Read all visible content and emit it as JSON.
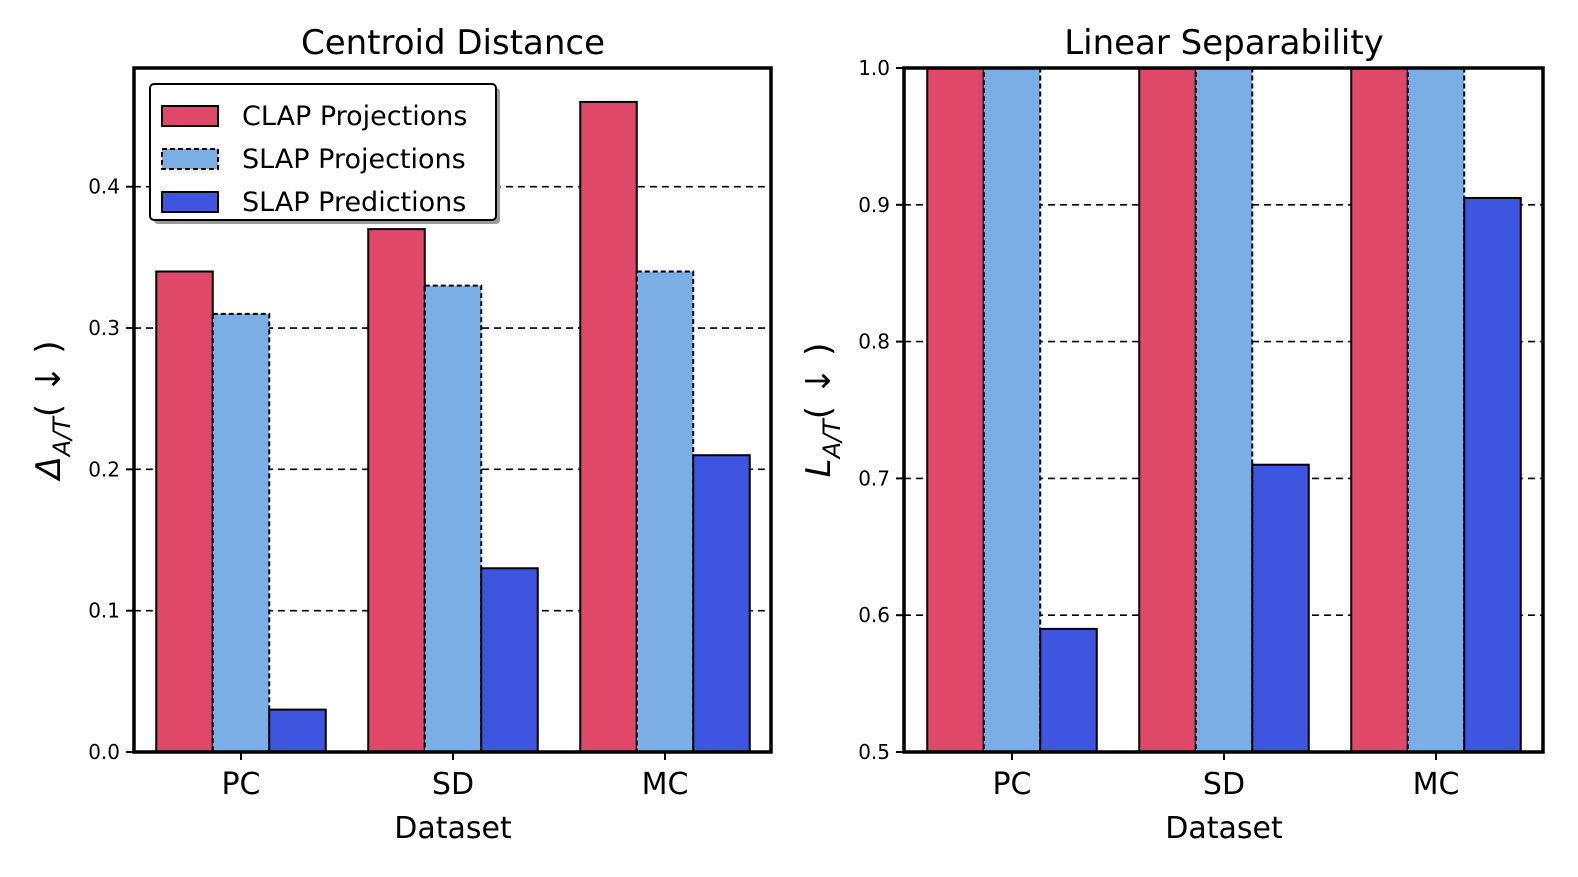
{
  "colors": {
    "clap_projections": "#E0486A",
    "slap_projections": "#7AAEE4",
    "slap_predictions": "#3D55DF"
  },
  "chart_data": [
    {
      "type": "bar",
      "title": "Centroid Distance",
      "xlabel": "Dataset",
      "ylabel": "Δ_{A/T}( ↓ )",
      "ylabel_main": "Δ",
      "ylabel_sub": "A/T",
      "ylabel_suffix": "( ↓ )",
      "categories": [
        "PC",
        "SD",
        "MC"
      ],
      "ylim": [
        0.0,
        0.484
      ],
      "yticks": [
        0.0,
        0.1,
        0.2,
        0.3,
        0.4
      ],
      "ytick_labels": [
        "0.0",
        "0.1",
        "0.2",
        "0.3",
        "0.4"
      ],
      "grid": true,
      "legend": "top-left",
      "series": [
        {
          "name": "CLAP Projections",
          "values": [
            0.34,
            0.37,
            0.46
          ],
          "color_key": "clap_projections",
          "dashed_edge": false
        },
        {
          "name": "SLAP Projections",
          "values": [
            0.31,
            0.33,
            0.34
          ],
          "color_key": "slap_projections",
          "dashed_edge": true
        },
        {
          "name": "SLAP Predictions",
          "values": [
            0.03,
            0.13,
            0.21
          ],
          "color_key": "slap_predictions",
          "dashed_edge": false
        }
      ]
    },
    {
      "type": "bar",
      "title": "Linear Separability",
      "xlabel": "Dataset",
      "ylabel": "L_{A/T}( ↓ )",
      "ylabel_main": "L",
      "ylabel_sub": "A/T",
      "ylabel_suffix": "( ↓ )",
      "categories": [
        "PC",
        "SD",
        "MC"
      ],
      "ylim": [
        0.5,
        1.0
      ],
      "yticks": [
        0.5,
        0.6,
        0.7,
        0.8,
        0.9,
        1.0
      ],
      "ytick_labels": [
        "0.5",
        "0.6",
        "0.7",
        "0.8",
        "0.9",
        "1.0"
      ],
      "grid": true,
      "legend": "none",
      "series": [
        {
          "name": "CLAP Projections",
          "values": [
            1.0,
            1.0,
            1.0
          ],
          "color_key": "clap_projections",
          "dashed_edge": false
        },
        {
          "name": "SLAP Projections",
          "values": [
            1.0,
            1.0,
            1.0
          ],
          "color_key": "slap_projections",
          "dashed_edge": true
        },
        {
          "name": "SLAP Predictions",
          "values": [
            0.59,
            0.71,
            0.905
          ],
          "color_key": "slap_predictions",
          "dashed_edge": false
        }
      ]
    }
  ]
}
